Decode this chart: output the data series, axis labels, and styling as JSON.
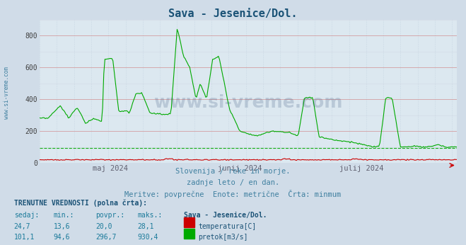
{
  "title": "Sava - Jesenice/Dol.",
  "title_color": "#1a5276",
  "bg_color": "#d0dce8",
  "plot_bg_color": "#dce8f0",
  "grid_color_h_major": "#d08080",
  "grid_color_h_minor": "#c8c8d8",
  "grid_color_v": "#b8c8d8",
  "ylabel_color": "#404040",
  "ylim": [
    0,
    900
  ],
  "yticks": [
    0,
    200,
    400,
    600,
    800
  ],
  "xlabel_color": "#606070",
  "temp_color": "#cc0000",
  "flow_color": "#00aa00",
  "min_line_color": "#00aa00",
  "min_line_value": 94.6,
  "subtitle_lines": [
    "Slovenija / reke in morje.",
    "zadnje leto / en dan.",
    "Meritve: povprečne  Enote: metrične  Črta: minmum"
  ],
  "subtitle_color": "#4080a0",
  "watermark": "www.si-vreme.com",
  "xtick_labels": [
    "maj 2024",
    "junij 2024",
    "julij 2024"
  ],
  "info_title": "TRENUTNE VREDNOSTI (polna črta):",
  "info_station": "Sava - Jesenice/Dol.",
  "legend_temp": "temperatura[C]",
  "legend_flow": "pretok[m3/s]",
  "figsize": [
    6.59,
    3.46
  ],
  "dpi": 100,
  "n_points": 365
}
